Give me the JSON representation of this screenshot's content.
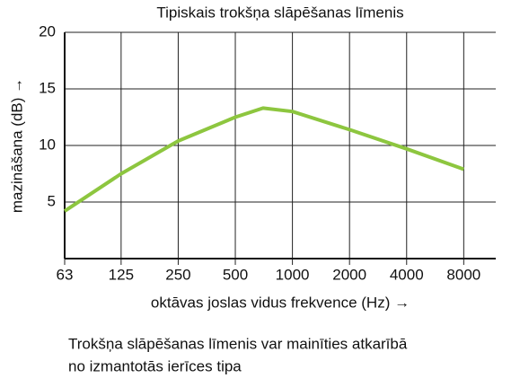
{
  "chart_data": {
    "type": "line",
    "title": "Tipiskais trokšņa slāpēšanas līmenis",
    "y_label": "mazināšana (dB) →",
    "x_label": "oktāvas joslas vidus frekvence (Hz) →",
    "x": [
      63,
      125,
      250,
      500,
      700,
      1000,
      2000,
      4000,
      8000
    ],
    "values": [
      4.2,
      7.5,
      10.4,
      12.5,
      13.3,
      13.0,
      11.4,
      9.7,
      7.9
    ],
    "color": "#8dc63f",
    "x_scale": "log",
    "xlim": [
      63,
      11800
    ],
    "xticks": [
      63,
      125,
      250,
      500,
      1000,
      2000,
      4000,
      8000
    ],
    "ylim": [
      0,
      20
    ],
    "yticks": [
      5,
      10,
      15,
      20
    ],
    "grid": true
  },
  "caption": [
    "Trokšņa slāpēšanas līmenis var mainīties atkarībā",
    "no izmantotās ierīces tipa"
  ]
}
